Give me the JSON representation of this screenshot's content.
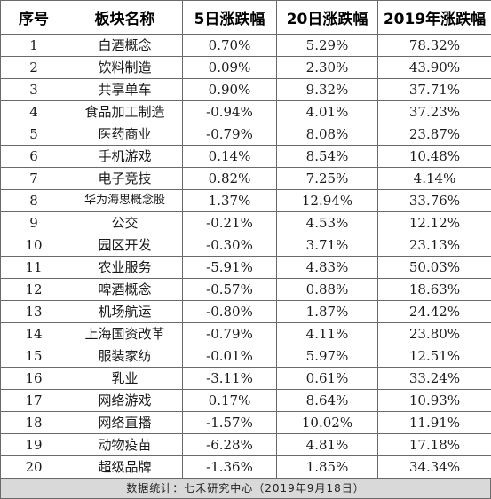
{
  "headers": {
    "index": "序号",
    "sector": "板块名称",
    "change_5d": "5日涨跌幅",
    "change_20d": "20日涨跌幅",
    "change_2019": "2019年涨跌幅"
  },
  "rows": [
    {
      "index": "1",
      "sector": "白酒概念",
      "change_5d": "0.70%",
      "change_20d": "5.29%",
      "change_2019": "78.32%"
    },
    {
      "index": "2",
      "sector": "饮料制造",
      "change_5d": "0.09%",
      "change_20d": "2.30%",
      "change_2019": "43.90%"
    },
    {
      "index": "3",
      "sector": "共享单车",
      "change_5d": "0.90%",
      "change_20d": "9.32%",
      "change_2019": "37.71%"
    },
    {
      "index": "4",
      "sector": "食品加工制造",
      "change_5d": "-0.94%",
      "change_20d": "4.01%",
      "change_2019": "37.23%"
    },
    {
      "index": "5",
      "sector": "医药商业",
      "change_5d": "-0.79%",
      "change_20d": "8.08%",
      "change_2019": "23.87%"
    },
    {
      "index": "6",
      "sector": "手机游戏",
      "change_5d": "0.14%",
      "change_20d": "8.54%",
      "change_2019": "10.48%"
    },
    {
      "index": "7",
      "sector": "电子竞技",
      "change_5d": "0.82%",
      "change_20d": "7.25%",
      "change_2019": "4.14%"
    },
    {
      "index": "8",
      "sector": "华为海思概念股",
      "change_5d": "1.37%",
      "change_20d": "12.94%",
      "change_2019": "33.76%"
    },
    {
      "index": "9",
      "sector": "公交",
      "change_5d": "-0.21%",
      "change_20d": "4.53%",
      "change_2019": "12.12%"
    },
    {
      "index": "10",
      "sector": "园区开发",
      "change_5d": "-0.30%",
      "change_20d": "3.71%",
      "change_2019": "23.13%"
    },
    {
      "index": "11",
      "sector": "农业服务",
      "change_5d": "-5.91%",
      "change_20d": "4.83%",
      "change_2019": "50.03%"
    },
    {
      "index": "12",
      "sector": "啤酒概念",
      "change_5d": "-0.57%",
      "change_20d": "0.88%",
      "change_2019": "18.63%"
    },
    {
      "index": "13",
      "sector": "机场航运",
      "change_5d": "-0.80%",
      "change_20d": "1.87%",
      "change_2019": "24.42%"
    },
    {
      "index": "14",
      "sector": "上海国资改革",
      "change_5d": "-0.79%",
      "change_20d": "4.11%",
      "change_2019": "23.80%"
    },
    {
      "index": "15",
      "sector": "服装家纺",
      "change_5d": "-0.01%",
      "change_20d": "5.97%",
      "change_2019": "12.51%"
    },
    {
      "index": "16",
      "sector": "乳业",
      "change_5d": "-3.11%",
      "change_20d": "0.61%",
      "change_2019": "33.24%"
    },
    {
      "index": "17",
      "sector": "网络游戏",
      "change_5d": "0.17%",
      "change_20d": "8.64%",
      "change_2019": "10.93%"
    },
    {
      "index": "18",
      "sector": "网络直播",
      "change_5d": "-1.57%",
      "change_20d": "10.02%",
      "change_2019": "11.91%"
    },
    {
      "index": "19",
      "sector": "动物疫苗",
      "change_5d": "-6.28%",
      "change_20d": "4.81%",
      "change_2019": "17.18%"
    },
    {
      "index": "20",
      "sector": "超级品牌",
      "change_5d": "-1.36%",
      "change_20d": "1.85%",
      "change_2019": "34.34%"
    }
  ],
  "footer": {
    "source": "数据统计：七禾研究中心（2019年9月18日）"
  },
  "colors": {
    "border": "#6a6a6a",
    "footer_background": "#d9d9d9",
    "text": "#1a1a1a"
  }
}
